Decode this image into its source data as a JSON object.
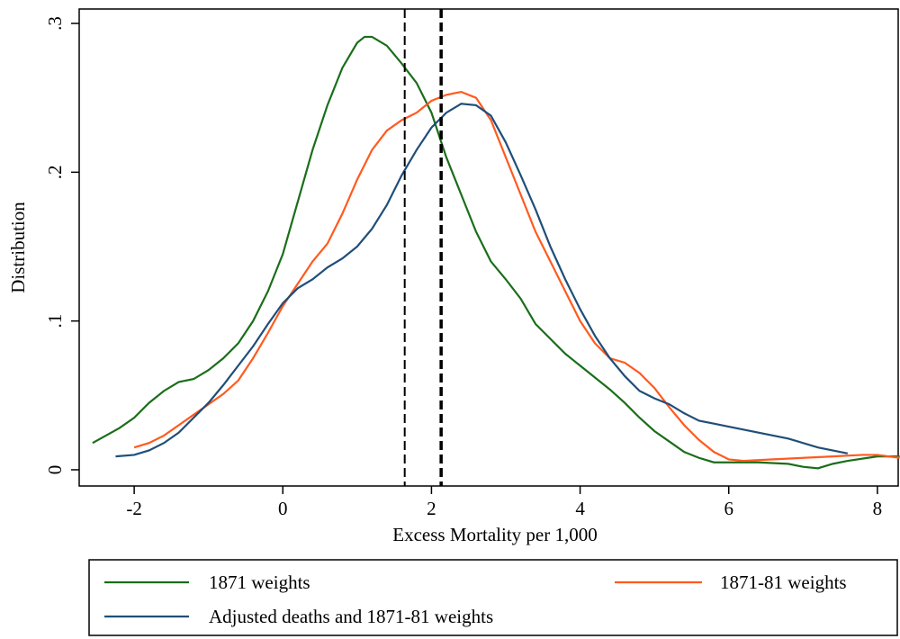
{
  "chart_data": {
    "type": "line",
    "x_label": "Excess Mortality per 1,000",
    "y_label": "Distribution",
    "xlim": [
      -2.74,
      8.28
    ],
    "ylim": [
      -0.0109,
      0.3097
    ],
    "xticks": [
      -2,
      0,
      2,
      4,
      6,
      8
    ],
    "yticks": [
      0,
      {
        "value": 0.1,
        "label": ".1"
      },
      {
        "value": 0.2,
        "label": ".2"
      },
      {
        "value": 0.3,
        "label": ".3"
      }
    ],
    "reference_lines": [
      {
        "x": 1.64,
        "width": 2
      },
      {
        "x": 2.13,
        "width": 3.5
      }
    ],
    "series": [
      {
        "name": "1871 weights",
        "color": "#1a6e1a",
        "x": [
          -2.56,
          -2.2,
          -2.0,
          -1.8,
          -1.6,
          -1.4,
          -1.2,
          -1.0,
          -0.8,
          -0.6,
          -0.4,
          -0.2,
          0.0,
          0.2,
          0.4,
          0.6,
          0.8,
          1.0,
          1.1,
          1.2,
          1.4,
          1.6,
          1.8,
          2.0,
          2.2,
          2.4,
          2.6,
          2.8,
          3.0,
          3.2,
          3.4,
          3.6,
          3.8,
          4.0,
          4.2,
          4.4,
          4.6,
          4.8,
          5.0,
          5.2,
          5.4,
          5.6,
          5.8,
          6.0,
          6.4,
          6.8,
          7.0,
          7.2,
          7.4,
          7.6,
          8.0,
          8.3
        ],
        "values": [
          0.018,
          0.028,
          0.035,
          0.045,
          0.053,
          0.059,
          0.061,
          0.067,
          0.075,
          0.085,
          0.1,
          0.12,
          0.145,
          0.18,
          0.215,
          0.245,
          0.27,
          0.287,
          0.291,
          0.291,
          0.285,
          0.273,
          0.26,
          0.24,
          0.21,
          0.185,
          0.16,
          0.14,
          0.128,
          0.115,
          0.098,
          0.088,
          0.078,
          0.07,
          0.062,
          0.054,
          0.045,
          0.035,
          0.026,
          0.019,
          0.012,
          0.008,
          0.005,
          0.005,
          0.005,
          0.004,
          0.002,
          0.001,
          0.004,
          0.006,
          0.009,
          0.009
        ]
      },
      {
        "name": "1871-81 weights",
        "color": "#ff5a1f",
        "x": [
          -2.0,
          -1.8,
          -1.6,
          -1.4,
          -1.2,
          -1.0,
          -0.8,
          -0.6,
          -0.4,
          -0.2,
          0.0,
          0.2,
          0.4,
          0.6,
          0.8,
          1.0,
          1.2,
          1.4,
          1.6,
          1.8,
          2.0,
          2.2,
          2.4,
          2.6,
          2.8,
          3.0,
          3.2,
          3.4,
          3.6,
          3.8,
          4.0,
          4.2,
          4.4,
          4.6,
          4.8,
          5.0,
          5.2,
          5.4,
          5.6,
          5.8,
          6.0,
          6.2,
          6.6,
          7.0,
          7.4,
          7.8,
          8.0,
          8.3
        ],
        "values": [
          0.015,
          0.018,
          0.023,
          0.03,
          0.037,
          0.044,
          0.051,
          0.06,
          0.075,
          0.092,
          0.11,
          0.125,
          0.14,
          0.152,
          0.172,
          0.195,
          0.215,
          0.228,
          0.235,
          0.24,
          0.248,
          0.252,
          0.254,
          0.25,
          0.235,
          0.21,
          0.185,
          0.16,
          0.14,
          0.12,
          0.1,
          0.085,
          0.075,
          0.072,
          0.065,
          0.055,
          0.042,
          0.03,
          0.02,
          0.012,
          0.007,
          0.006,
          0.007,
          0.008,
          0.009,
          0.01,
          0.01,
          0.008
        ]
      },
      {
        "name": "Adjusted deaths and 1871-81 weights",
        "color": "#1f4e79",
        "x": [
          -2.25,
          -2.0,
          -1.8,
          -1.6,
          -1.4,
          -1.2,
          -1.0,
          -0.8,
          -0.6,
          -0.4,
          -0.2,
          0.0,
          0.2,
          0.4,
          0.6,
          0.8,
          1.0,
          1.2,
          1.4,
          1.6,
          1.8,
          2.0,
          2.2,
          2.4,
          2.6,
          2.8,
          3.0,
          3.2,
          3.4,
          3.6,
          3.8,
          4.0,
          4.2,
          4.4,
          4.6,
          4.8,
          5.0,
          5.2,
          5.4,
          5.6,
          5.8,
          6.0,
          6.4,
          6.8,
          7.2,
          7.6
        ],
        "values": [
          0.009,
          0.01,
          0.013,
          0.018,
          0.025,
          0.035,
          0.045,
          0.057,
          0.07,
          0.083,
          0.098,
          0.112,
          0.122,
          0.128,
          0.136,
          0.142,
          0.15,
          0.162,
          0.178,
          0.198,
          0.215,
          0.23,
          0.24,
          0.246,
          0.245,
          0.238,
          0.22,
          0.198,
          0.175,
          0.15,
          0.128,
          0.108,
          0.09,
          0.075,
          0.063,
          0.053,
          0.048,
          0.044,
          0.038,
          0.033,
          0.031,
          0.029,
          0.025,
          0.021,
          0.015,
          0.011
        ]
      }
    ]
  }
}
